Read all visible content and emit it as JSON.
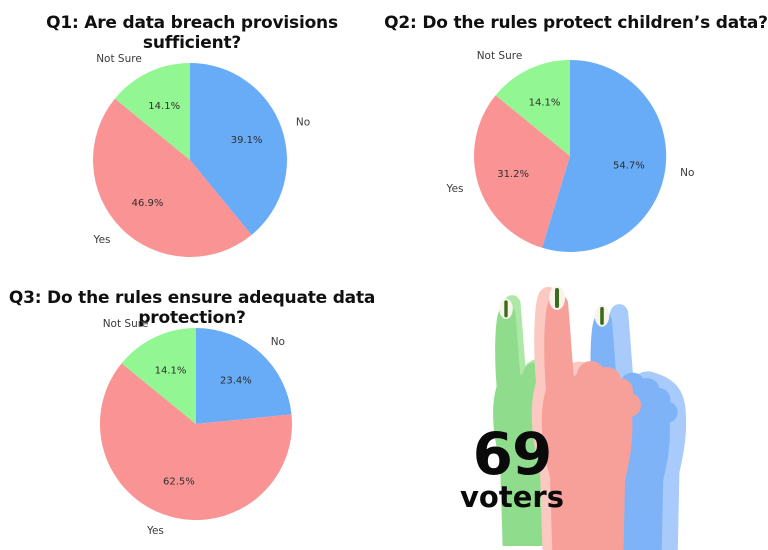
{
  "page": {
    "background": "#ffffff"
  },
  "chart_data": [
    {
      "type": "pie",
      "title": "Q1: Are data breach provisions sufficient?",
      "labels": [
        "No",
        "Yes",
        "Not Sure"
      ],
      "values": [
        39.1,
        46.9,
        14.1
      ],
      "colors": [
        "#68abf7",
        "#fa9494",
        "#92f792"
      ],
      "start_angle": "top",
      "direction": "clockwise",
      "value_suffix": "%",
      "legend": "none"
    },
    {
      "type": "pie",
      "title": "Q2: Do the rules protect children’s data?",
      "labels": [
        "No",
        "Yes",
        "Not Sure"
      ],
      "values": [
        54.7,
        31.2,
        14.1
      ],
      "colors": [
        "#68abf7",
        "#fa9494",
        "#92f792"
      ],
      "start_angle": "top",
      "direction": "clockwise",
      "value_suffix": "%",
      "legend": "none"
    },
    {
      "type": "pie",
      "title": "Q3: Do the rules ensure adequate data protection?",
      "labels": [
        "No",
        "Yes",
        "Not Sure"
      ],
      "values": [
        23.4,
        62.5,
        14.1
      ],
      "colors": [
        "#68abf7",
        "#fa9494",
        "#92f792"
      ],
      "start_angle": "top",
      "direction": "clockwise",
      "value_suffix": "%",
      "legend": "none"
    }
  ],
  "voters": {
    "count": "69",
    "label": "voters",
    "nail_color": "#f8f4ea",
    "ink_color": "#3b6b1d",
    "hands": [
      {
        "name": "green-hand",
        "color": "#8fdc8c",
        "highlight": "#aee8a6"
      },
      {
        "name": "blue-hand",
        "color": "#7eb3f7",
        "highlight": "#a8cbfb"
      },
      {
        "name": "salmon-hand",
        "color": "#f7a09a",
        "highlight": "#fbc9c2"
      }
    ]
  }
}
